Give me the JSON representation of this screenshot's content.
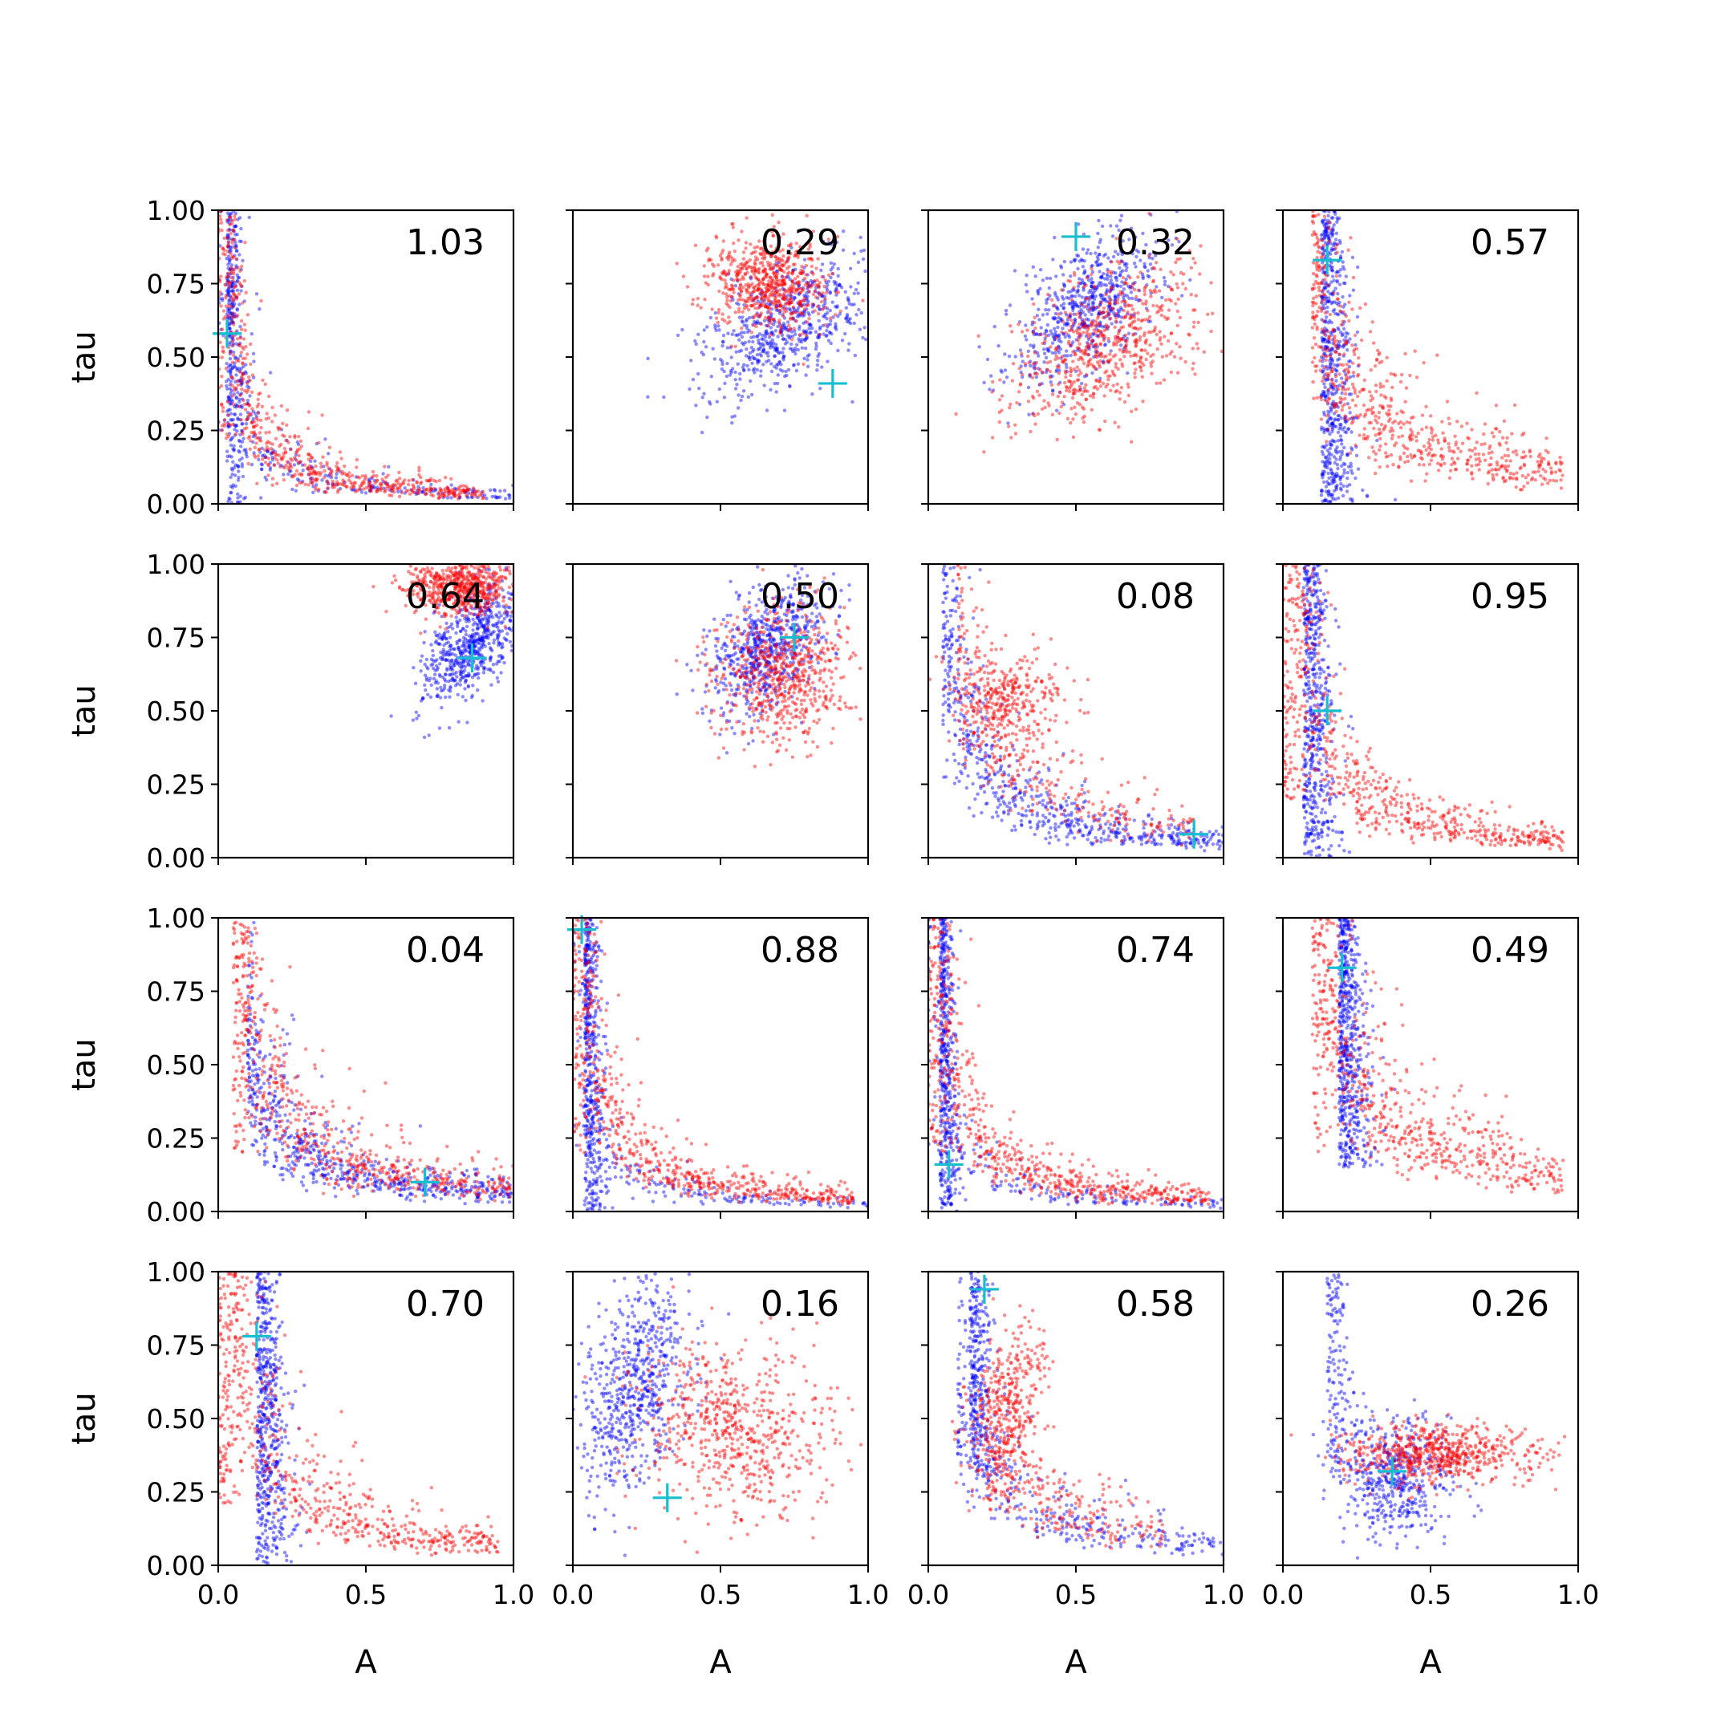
{
  "chart_data": {
    "type": "scatter",
    "layout": "4x4 grid of scatter panels, shared x and y axes",
    "xlabel": "A",
    "ylabel": "tau",
    "xlim": [
      0.0,
      1.0
    ],
    "ylim": [
      0.0,
      1.0
    ],
    "x_ticks": [
      "0.0",
      "0.5",
      "1.0"
    ],
    "y_ticks": [
      "0.00",
      "0.25",
      "0.50",
      "0.75",
      "1.00"
    ],
    "grid": false,
    "series_colors": {
      "blue": "#0000ff",
      "red": "#ff0000",
      "marker": "#17becf"
    },
    "panels": [
      {
        "label": "1.03",
        "marker": [
          0.03,
          0.58
        ],
        "blue": [
          {
            "shape": "vert",
            "x": 0.03,
            "sx": 0.03,
            "ymin": 0.0,
            "ymax": 1.0,
            "n": 300
          },
          {
            "shape": "curve",
            "k": 0.03,
            "xmin": 0.0,
            "xmax": 1.0,
            "n": 300
          }
        ],
        "red": [
          {
            "shape": "curve",
            "k": 0.035,
            "xmin": 0.0,
            "xmax": 0.9,
            "n": 650
          }
        ]
      },
      {
        "label": "0.29",
        "marker": [
          0.88,
          0.41
        ],
        "blue": [
          {
            "shape": "blob",
            "cx": 0.72,
            "cy": 0.6,
            "sx": 0.09,
            "sy": 0.17,
            "rot": -0.95,
            "n": 650
          }
        ],
        "red": [
          {
            "shape": "blob",
            "cx": 0.66,
            "cy": 0.75,
            "sx": 0.1,
            "sy": 0.08,
            "rot": -0.3,
            "n": 650
          }
        ]
      },
      {
        "label": "0.32",
        "marker": [
          0.5,
          0.91
        ],
        "blue": [
          {
            "shape": "blob",
            "cx": 0.53,
            "cy": 0.66,
            "sx": 0.08,
            "sy": 0.16,
            "rot": -0.75,
            "n": 650
          }
        ],
        "red": [
          {
            "shape": "blob",
            "cx": 0.6,
            "cy": 0.55,
            "sx": 0.11,
            "sy": 0.18,
            "rot": -0.9,
            "n": 650
          }
        ]
      },
      {
        "label": "0.57",
        "marker": [
          0.15,
          0.83
        ],
        "blue": [
          {
            "shape": "vert",
            "x": 0.13,
            "sx": 0.05,
            "ymin": 0.0,
            "ymax": 1.0,
            "n": 600
          }
        ],
        "red": [
          {
            "shape": "curve",
            "k": 0.1,
            "xmin": 0.1,
            "xmax": 0.95,
            "n": 650
          }
        ]
      },
      {
        "label": "0.64",
        "marker": [
          0.86,
          0.68
        ],
        "blue": [
          {
            "shape": "blob",
            "cx": 0.86,
            "cy": 0.74,
            "sx": 0.06,
            "sy": 0.12,
            "rot": -0.6,
            "n": 650
          }
        ],
        "red": [
          {
            "shape": "blob",
            "cx": 0.82,
            "cy": 0.93,
            "sx": 0.09,
            "sy": 0.05,
            "rot": 0.0,
            "n": 650
          }
        ]
      },
      {
        "label": "0.50",
        "marker": [
          0.75,
          0.75
        ],
        "blue": [
          {
            "shape": "blob",
            "cx": 0.67,
            "cy": 0.72,
            "sx": 0.08,
            "sy": 0.13,
            "rot": -0.7,
            "n": 650
          }
        ],
        "red": [
          {
            "shape": "blob",
            "cx": 0.71,
            "cy": 0.63,
            "sx": 0.11,
            "sy": 0.12,
            "rot": -0.6,
            "n": 650
          }
        ]
      },
      {
        "label": "0.08",
        "marker": [
          0.9,
          0.08
        ],
        "blue": [
          {
            "shape": "curve",
            "k": 0.06,
            "xmin": 0.05,
            "xmax": 1.0,
            "n": 650
          }
        ],
        "red": [
          {
            "shape": "blob",
            "cx": 0.27,
            "cy": 0.53,
            "sx": 0.09,
            "sy": 0.09,
            "rot": 0.0,
            "n": 350
          },
          {
            "shape": "curve",
            "k": 0.09,
            "xmin": 0.1,
            "xmax": 0.9,
            "n": 300
          }
        ]
      },
      {
        "label": "0.95",
        "marker": [
          0.15,
          0.5
        ],
        "blue": [
          {
            "shape": "vert",
            "x": 0.07,
            "sx": 0.05,
            "ymin": 0.0,
            "ymax": 1.0,
            "n": 550
          }
        ],
        "red": [
          {
            "shape": "curve",
            "k": 0.06,
            "xmin": 0.0,
            "xmax": 0.95,
            "n": 650
          }
        ]
      },
      {
        "label": "0.04",
        "marker": [
          0.7,
          0.1
        ],
        "blue": [
          {
            "shape": "curve",
            "k": 0.06,
            "xmin": 0.1,
            "xmax": 1.0,
            "n": 650
          }
        ],
        "red": [
          {
            "shape": "curve",
            "k": 0.08,
            "xmin": 0.05,
            "xmax": 1.0,
            "n": 650
          }
        ]
      },
      {
        "label": "0.88",
        "marker": [
          0.03,
          0.96
        ],
        "blue": [
          {
            "shape": "vert",
            "x": 0.04,
            "sx": 0.03,
            "ymin": 0.0,
            "ymax": 1.0,
            "n": 450
          },
          {
            "shape": "curve",
            "k": 0.025,
            "xmin": 0.0,
            "xmax": 1.0,
            "n": 200
          }
        ],
        "red": [
          {
            "shape": "curve",
            "k": 0.045,
            "xmin": 0.0,
            "xmax": 0.95,
            "n": 650
          }
        ]
      },
      {
        "label": "0.74",
        "marker": [
          0.07,
          0.16
        ],
        "blue": [
          {
            "shape": "vert",
            "x": 0.04,
            "sx": 0.03,
            "ymin": 0.0,
            "ymax": 1.0,
            "n": 450
          },
          {
            "shape": "curve",
            "k": 0.025,
            "xmin": 0.0,
            "xmax": 1.0,
            "n": 200
          }
        ],
        "red": [
          {
            "shape": "curve",
            "k": 0.045,
            "xmin": 0.0,
            "xmax": 0.95,
            "n": 650
          }
        ]
      },
      {
        "label": "0.49",
        "marker": [
          0.2,
          0.83
        ],
        "blue": [
          {
            "shape": "vert",
            "x": 0.19,
            "sx": 0.05,
            "ymin": 0.15,
            "ymax": 1.0,
            "n": 600
          }
        ],
        "red": [
          {
            "shape": "curve",
            "k": 0.12,
            "xmin": 0.1,
            "xmax": 0.95,
            "n": 650
          }
        ]
      },
      {
        "label": "0.70",
        "marker": [
          0.13,
          0.78
        ],
        "blue": [
          {
            "shape": "vert",
            "x": 0.13,
            "sx": 0.05,
            "ymin": 0.0,
            "ymax": 1.0,
            "n": 550
          }
        ],
        "red": [
          {
            "shape": "curve",
            "k": 0.07,
            "xmin": 0.0,
            "xmax": 0.95,
            "n": 650
          }
        ]
      },
      {
        "label": "0.16",
        "marker": [
          0.32,
          0.23
        ],
        "blue": [
          {
            "shape": "blob",
            "cx": 0.21,
            "cy": 0.6,
            "sx": 0.08,
            "sy": 0.19,
            "rot": -0.25,
            "n": 650
          }
        ],
        "red": [
          {
            "shape": "blob",
            "cx": 0.54,
            "cy": 0.46,
            "sx": 0.17,
            "sy": 0.14,
            "rot": -0.6,
            "n": 650
          }
        ]
      },
      {
        "label": "0.58",
        "marker": [
          0.19,
          0.94
        ],
        "blue": [
          {
            "shape": "vert",
            "x": 0.14,
            "sx": 0.05,
            "ymin": 0.3,
            "ymax": 1.0,
            "n": 300
          },
          {
            "shape": "curve",
            "k": 0.07,
            "xmin": 0.1,
            "xmax": 1.0,
            "n": 350
          }
        ],
        "red": [
          {
            "shape": "blob",
            "cx": 0.27,
            "cy": 0.55,
            "sx": 0.06,
            "sy": 0.14,
            "rot": -0.3,
            "n": 350
          },
          {
            "shape": "curve",
            "k": 0.09,
            "xmin": 0.2,
            "xmax": 0.8,
            "n": 300
          }
        ]
      },
      {
        "label": "0.26",
        "marker": [
          0.37,
          0.32
        ],
        "blue": [
          {
            "shape": "blob",
            "cx": 0.37,
            "cy": 0.3,
            "sx": 0.1,
            "sy": 0.1,
            "rot": 0.0,
            "n": 500
          },
          {
            "shape": "vert",
            "x": 0.15,
            "sx": 0.05,
            "ymin": 0.3,
            "ymax": 1.0,
            "n": 150
          }
        ],
        "red": [
          {
            "shape": "blob",
            "cx": 0.52,
            "cy": 0.38,
            "sx": 0.16,
            "sy": 0.05,
            "rot": 0.0,
            "n": 650
          }
        ]
      }
    ]
  }
}
